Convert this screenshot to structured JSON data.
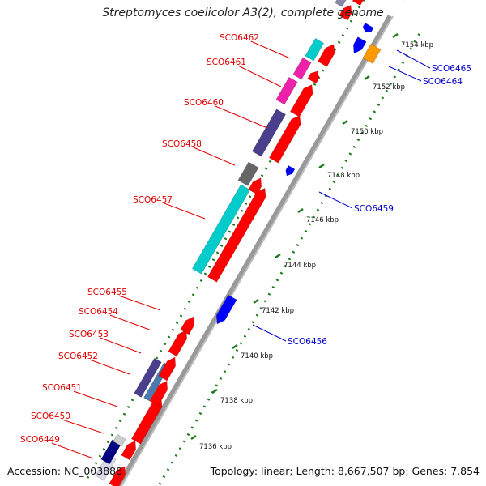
{
  "title": "Streptomyces coelicolor A3(2), complete genome",
  "footer": {
    "accession": "Accession: NC_003888",
    "topology": "Topology: linear; Length: 8,667,507 bp; Genes: 7,854"
  },
  "kbp_ticks": [
    "7136 kbp",
    "7138 kbp",
    "7140 kbp",
    "7142 kbp",
    "7144 kbp",
    "7146 kbp",
    "7148 kbp",
    "7150 kbp",
    "7152 kbp",
    "7154 kbp"
  ],
  "left_genes": [
    "SCO6462",
    "SCO6461",
    "SCO6460",
    "SCO6458",
    "SCO6457",
    "SCO6455",
    "SCO6454",
    "SCO6453",
    "SCO6452",
    "SCO6451",
    "SCO6450",
    "SCO6449"
  ],
  "right_genes": [
    "SCO6465",
    "SCO6464",
    "SCO6459",
    "SCO6456"
  ],
  "colors": {
    "label_left": "#e00000",
    "label_right": "#0000cc",
    "gene_red": "#ff0000",
    "gene_blue": "#0000ff",
    "cyan": "#00cccc",
    "magenta": "#ee22aa",
    "slate": "#4a3f8c",
    "steel": "#4a7ab0",
    "grey": "#666666",
    "orange": "#ff9900",
    "navy": "#000080",
    "tick_green": "#1a7a1a",
    "backbone": "#999999"
  }
}
